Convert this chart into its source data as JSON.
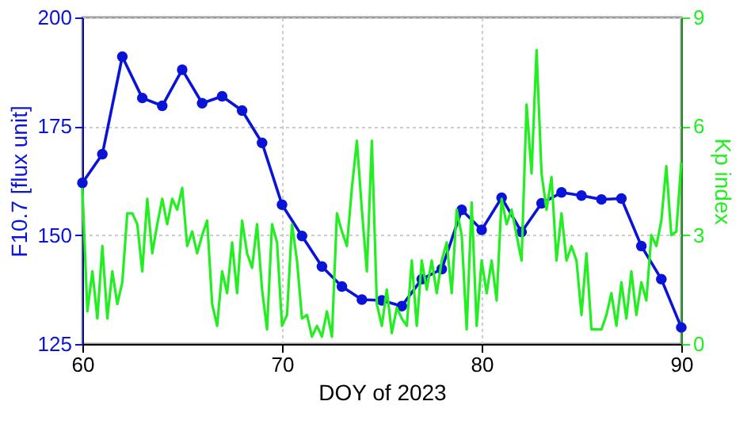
{
  "chart_data": {
    "type": "line",
    "xlabel": "DOY of 2023",
    "ylabel": "F10.7 [flux unit]",
    "y2label": "Kp index",
    "xlim": [
      60,
      90
    ],
    "xticks": [
      60,
      70,
      80,
      90
    ],
    "ylim": [
      125,
      200
    ],
    "yticks": [
      125,
      150,
      175,
      200
    ],
    "y2lim": [
      0,
      9
    ],
    "y2ticks": [
      0,
      3,
      6,
      9
    ],
    "grid": true,
    "series": [
      {
        "marker": "circle",
        "color": "#0a14d8",
        "x": [
          60,
          61,
          62,
          63,
          64,
          65,
          66,
          67,
          68,
          69,
          70,
          71,
          72,
          73,
          74,
          75,
          76,
          77,
          78,
          79,
          80,
          81,
          82,
          83,
          84,
          85,
          86,
          87,
          88,
          89,
          90
        ],
        "values": [
          162,
          168.6,
          191,
          181.5,
          179.7,
          188,
          180.3,
          181.9,
          178.6,
          171.2,
          157,
          149.8,
          142.8,
          138.2,
          135.2,
          135,
          133.7,
          139.9,
          142.2,
          155.8,
          151.2,
          158.6,
          150.7,
          157.3,
          159.8,
          159.1,
          158.2,
          158.4,
          147.5,
          139.9,
          128.8
        ]
      },
      {
        "type": "line",
        "marker": "none",
        "axis": "y2",
        "color": "#22ee22",
        "x": [
          60,
          60.25,
          60.5,
          60.75,
          61,
          61.25,
          61.5,
          61.75,
          62,
          62.25,
          62.5,
          62.75,
          63,
          63.25,
          63.5,
          63.75,
          64,
          64.25,
          64.5,
          64.75,
          65,
          65.25,
          65.5,
          65.75,
          66,
          66.25,
          66.5,
          66.75,
          67,
          67.25,
          67.5,
          67.75,
          68,
          68.25,
          68.5,
          68.75,
          69,
          69.25,
          69.5,
          69.75,
          70,
          70.25,
          70.5,
          70.75,
          71,
          71.25,
          71.5,
          71.75,
          72,
          72.25,
          72.5,
          72.75,
          73,
          73.25,
          73.5,
          73.75,
          74,
          74.25,
          74.5,
          74.75,
          75,
          75.25,
          75.5,
          75.75,
          76,
          76.25,
          76.5,
          76.75,
          77,
          77.25,
          77.5,
          77.75,
          78,
          78.25,
          78.5,
          78.75,
          79,
          79.25,
          79.5,
          79.75,
          80,
          80.25,
          80.5,
          80.75,
          81,
          81.25,
          81.5,
          81.75,
          82,
          82.25,
          82.5,
          82.75,
          83,
          83.25,
          83.5,
          83.75,
          84,
          84.25,
          84.5,
          84.75,
          85,
          85.25,
          85.5,
          85.75,
          86,
          86.25,
          86.5,
          86.75,
          87,
          87.25,
          87.5,
          87.75,
          88,
          88.25,
          88.5,
          88.75,
          89,
          89.25,
          89.5,
          89.75,
          90
        ],
        "values": [
          4.3,
          0.9,
          2.0,
          0.7,
          2.7,
          0.7,
          2.0,
          1.1,
          1.7,
          3.6,
          3.6,
          3.3,
          2.0,
          4.0,
          2.5,
          3.3,
          4.0,
          3.3,
          4.0,
          3.7,
          4.3,
          2.7,
          3.1,
          2.5,
          3.0,
          3.4,
          1.1,
          0.5,
          2.0,
          1.4,
          2.8,
          1.4,
          3.4,
          2.5,
          2.1,
          3.3,
          1.5,
          0.4,
          3.3,
          2.8,
          0.5,
          0.8,
          3.3,
          2.3,
          0.7,
          0.8,
          0.2,
          0.5,
          0.2,
          0.9,
          0.2,
          3.6,
          3.1,
          2.7,
          4.3,
          5.6,
          3.7,
          2.0,
          5.6,
          1.1,
          0.5,
          1.5,
          0.3,
          1.0,
          0.7,
          0.5,
          2.3,
          0.5,
          2.3,
          1.5,
          2.3,
          1.4,
          2.3,
          2.8,
          1.4,
          3.7,
          3.0,
          0.4,
          3.9,
          0.5,
          2.3,
          1.4,
          2.3,
          1.2,
          4.0,
          3.3,
          3.7,
          3.0,
          2.3,
          6.6,
          4.7,
          8.1,
          4.7,
          3.7,
          4.6,
          2.3,
          3.6,
          2.3,
          2.7,
          2.3,
          0.8,
          2.5,
          0.4,
          0.4,
          0.4,
          0.8,
          1.4,
          0.5,
          1.7,
          0.7,
          2.0,
          0.8,
          1.7,
          1.2,
          3.0,
          2.7,
          3.4,
          4.9,
          3.0,
          3.1,
          5.0
        ]
      }
    ]
  }
}
